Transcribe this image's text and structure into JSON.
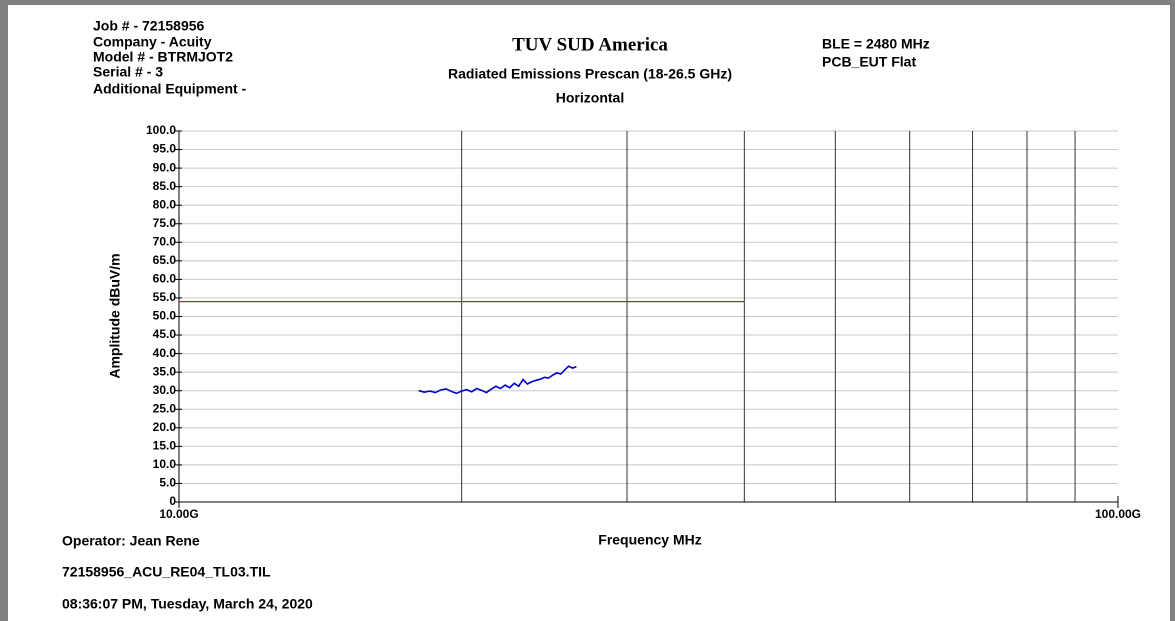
{
  "header": {
    "job": "Job # - 72158956",
    "company": "Company - Acuity",
    "model": "Model # - BTRMJOT2",
    "serial": "Serial # - 3",
    "equipment": "Additional Equipment -",
    "band": "BLE = 2480 MHz",
    "setup": "PCB_EUT Flat"
  },
  "chart_data": {
    "type": "line",
    "title": "TUV SUD America",
    "subtitle": "Radiated Emissions Prescan (18-26.5 GHz)",
    "polarization": "Horizontal",
    "x_label": "Frequency MHz",
    "y_label": "Amplitude dBuV/m",
    "xscale": "log",
    "xlim": [
      10000,
      100000
    ],
    "xticks": [
      {
        "value": 10000,
        "label": "10.00G"
      },
      {
        "value": 100000,
        "label": "100.00G"
      }
    ],
    "xgrid": [
      20000,
      30000,
      40000,
      50000,
      60000,
      70000,
      80000,
      90000
    ],
    "ylim": [
      0,
      100
    ],
    "yticks": [
      {
        "value": 0,
        "label": "0"
      },
      {
        "value": 5,
        "label": "5.0"
      },
      {
        "value": 10,
        "label": "10.0"
      },
      {
        "value": 15,
        "label": "15.0"
      },
      {
        "value": 20,
        "label": "20.0"
      },
      {
        "value": 25,
        "label": "25.0"
      },
      {
        "value": 30,
        "label": "30.0"
      },
      {
        "value": 35,
        "label": "35.0"
      },
      {
        "value": 40,
        "label": "40.0"
      },
      {
        "value": 45,
        "label": "45.0"
      },
      {
        "value": 50,
        "label": "50.0"
      },
      {
        "value": 55,
        "label": "55.0"
      },
      {
        "value": 60,
        "label": "60.0"
      },
      {
        "value": 65,
        "label": "65.0"
      },
      {
        "value": 70,
        "label": "70.0"
      },
      {
        "value": 75,
        "label": "75.0"
      },
      {
        "value": 80,
        "label": "80.0"
      },
      {
        "value": 85,
        "label": "85.0"
      },
      {
        "value": 90,
        "label": "90.0"
      },
      {
        "value": 95,
        "label": "95.0"
      },
      {
        "value": 100,
        "label": "100.0"
      }
    ],
    "grid": true,
    "series": [
      {
        "color": "#a0302a",
        "x": [
          10000,
          40000
        ],
        "values": [
          54,
          54
        ]
      },
      {
        "color": "#0000cc",
        "x": [
          18000,
          18250,
          18500,
          18750,
          19000,
          19250,
          19500,
          19750,
          20000,
          20250,
          20500,
          20750,
          21000,
          21250,
          21500,
          21750,
          22000,
          22250,
          22500,
          22750,
          23000,
          23250,
          23500,
          23750,
          24000,
          24250,
          24500,
          24750,
          25000,
          25250,
          25500,
          25750,
          26000,
          26250,
          26500
        ],
        "values": [
          30.0,
          29.6,
          29.9,
          29.5,
          30.2,
          30.5,
          29.8,
          29.3,
          29.9,
          30.3,
          29.7,
          30.6,
          30.1,
          29.5,
          30.4,
          31.2,
          30.6,
          31.5,
          30.8,
          32.0,
          31.2,
          33.0,
          31.8,
          32.4,
          32.8,
          33.1,
          33.6,
          33.4,
          34.2,
          34.8,
          34.5,
          35.6,
          36.6,
          36.1,
          36.5
        ]
      }
    ]
  },
  "footer": {
    "operator": "Operator: Jean Rene",
    "file": "72158956_ACU_RE04_TL03.TIL",
    "date": "08:36:07 PM, Tuesday, March 24, 2020"
  }
}
